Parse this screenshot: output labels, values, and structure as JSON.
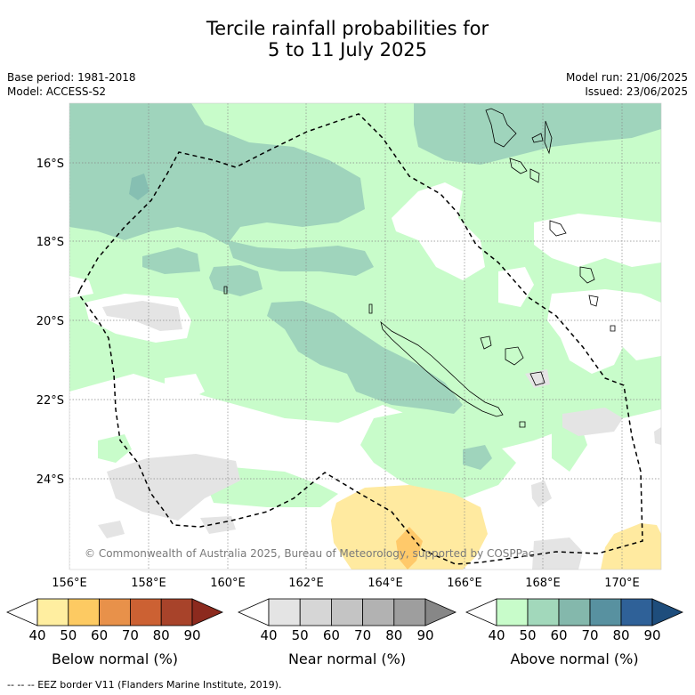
{
  "header": {
    "title_line1": "Tercile rainfall probabilities for",
    "title_line2": "5 to 11 July 2025",
    "base_period": "Base period: 1981-2018",
    "model": "Model: ACCESS-S2",
    "model_run": "Model run: 21/06/2025",
    "issued": "Issued: 23/06/2025"
  },
  "map": {
    "lat_ticks": [
      "16°S",
      "18°S",
      "20°S",
      "22°S",
      "24°S"
    ],
    "lon_ticks": [
      "156°E",
      "158°E",
      "160°E",
      "162°E",
      "164°E",
      "166°E",
      "168°E",
      "170°E"
    ],
    "copyright": "© Commonwealth of Australia 2025, Bureau of Meteorology, supported by COSPPac",
    "colors": {
      "above_50": "#c8fcca",
      "above_60": "#9fd4bc",
      "above_70": "#86bfb2",
      "near_50": "#e4e4e4",
      "below_50": "#ffeaa0",
      "below_60": "#ffc96a",
      "eez": "#000000",
      "grid": "#888888"
    }
  },
  "colorbars": [
    {
      "label": "Below normal (%)",
      "ticks": [
        "40",
        "50",
        "60",
        "70",
        "80",
        "90"
      ],
      "colors": [
        "#ffffff",
        "#ffeea0",
        "#fdca62",
        "#e8914a",
        "#cc6133",
        "#a8432a",
        "#8c2a1e"
      ]
    },
    {
      "label": "Near normal (%)",
      "ticks": [
        "40",
        "50",
        "60",
        "70",
        "80",
        "90"
      ],
      "colors": [
        "#ffffff",
        "#e4e4e4",
        "#d6d6d6",
        "#c4c4c4",
        "#b2b2b2",
        "#9e9e9e",
        "#878787"
      ]
    },
    {
      "label": "Above normal (%)",
      "ticks": [
        "40",
        "50",
        "60",
        "70",
        "80",
        "90"
      ],
      "colors": [
        "#ffffff",
        "#c8fcca",
        "#a2d8bb",
        "#84b8ac",
        "#5891a0",
        "#2f6198",
        "#1e4d7c"
      ]
    }
  ],
  "footer": {
    "legend_line": "-- -- -- EEZ border V11 (Flanders Marine Institute, 2019)."
  }
}
